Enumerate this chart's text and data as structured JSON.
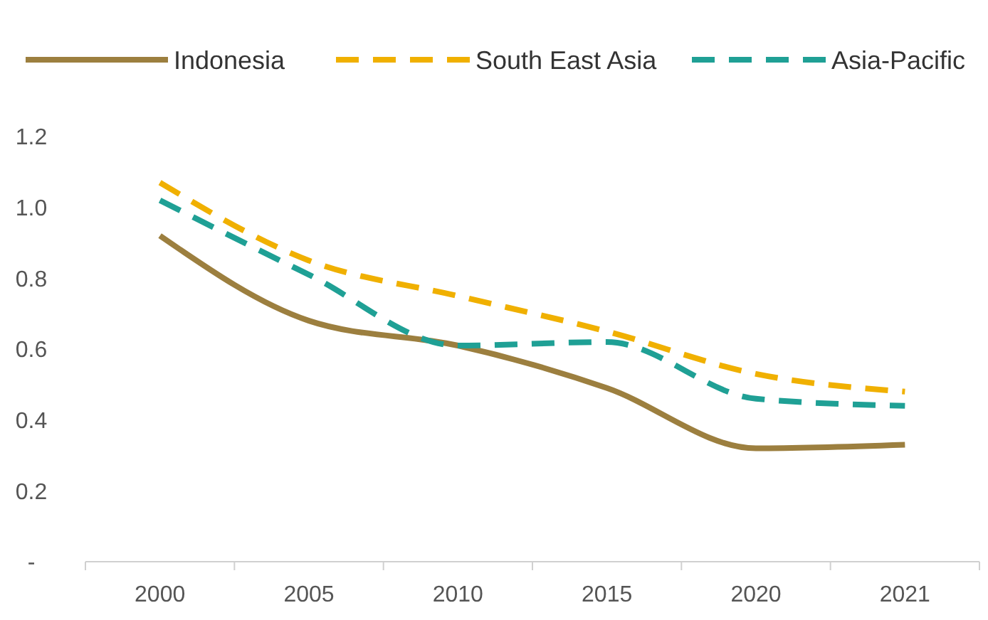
{
  "chart_data": {
    "type": "line",
    "categories": [
      "2000",
      "2005",
      "2010",
      "2015",
      "2020",
      "2021"
    ],
    "series": [
      {
        "name": "Indonesia",
        "color": "#9c7f3f",
        "values": [
          0.92,
          0.68,
          0.61,
          0.49,
          0.32,
          0.33
        ],
        "line_style": "solid"
      },
      {
        "name": "South East Asia",
        "color": "#f0b000",
        "values": [
          1.07,
          0.85,
          0.75,
          0.65,
          0.53,
          0.48
        ],
        "line_style": "dashed"
      },
      {
        "name": "Asia-Pacific",
        "color": "#1fa095",
        "values": [
          1.02,
          0.81,
          0.61,
          0.62,
          0.46,
          0.44
        ],
        "line_style": "dashed"
      }
    ],
    "ylim": [
      0,
      1.2
    ],
    "yticks": [
      {
        "value": 0,
        "label": "-"
      },
      {
        "value": 0.2,
        "label": "0.2"
      },
      {
        "value": 0.4,
        "label": "0.4"
      },
      {
        "value": 0.6,
        "label": "0.6"
      },
      {
        "value": 0.8,
        "label": "0.8"
      },
      {
        "value": 1,
        "label": "1.0"
      },
      {
        "value": 1.2,
        "label": "1.2"
      }
    ],
    "grid": false,
    "legend": "top",
    "marker": "none"
  }
}
